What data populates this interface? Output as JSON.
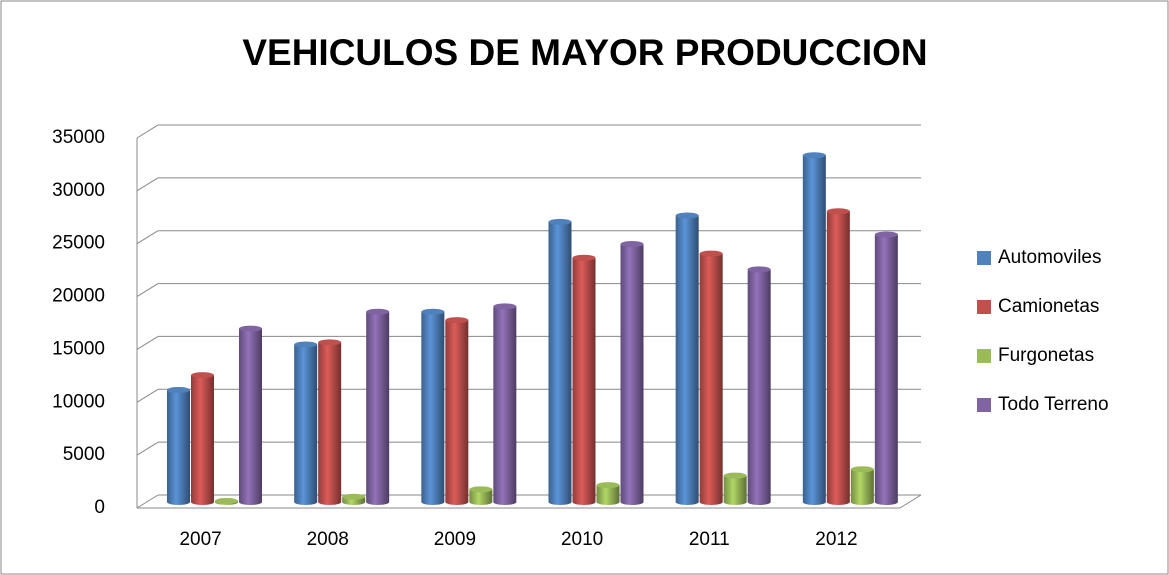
{
  "chart_data": {
    "type": "bar3d",
    "title": "VEHICULOS DE MAYOR PRODUCCION",
    "categories": [
      "2007",
      "2008",
      "2009",
      "2010",
      "2011",
      "2012"
    ],
    "series": [
      {
        "name": "Automoviles",
        "color": "#4f81bd",
        "values": [
          10600,
          14900,
          18000,
          26500,
          27100,
          32800
        ]
      },
      {
        "name": "Camionetas",
        "color": "#c0504d",
        "values": [
          12000,
          15100,
          17200,
          23100,
          23500,
          27500
        ]
      },
      {
        "name": "Furgonetas",
        "color": "#9bbb59",
        "values": [
          100,
          500,
          1200,
          1600,
          2500,
          3100
        ]
      },
      {
        "name": "Todo Terreno",
        "color": "#8064a2",
        "values": [
          16400,
          18000,
          18500,
          24400,
          22000,
          25300
        ]
      }
    ],
    "ylim": [
      0,
      35000
    ],
    "yticks": [
      0,
      5000,
      10000,
      15000,
      20000,
      25000,
      30000,
      35000
    ],
    "grid": true,
    "legend": "right"
  }
}
